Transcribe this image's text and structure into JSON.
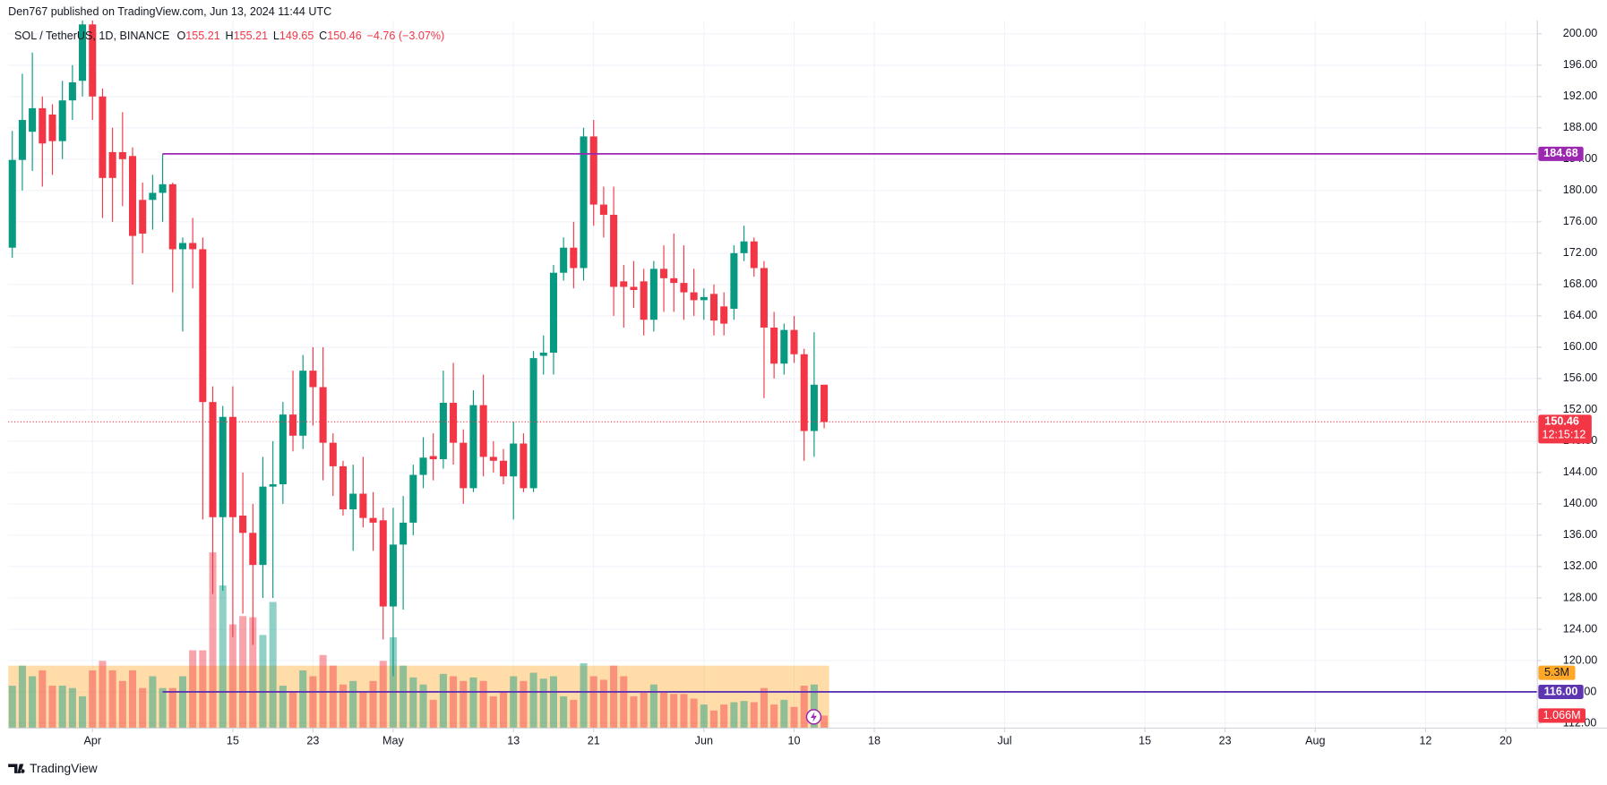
{
  "chart_data": {
    "type": "candlestick",
    "attribution": "Den767 published on TradingView.com, Jun 13, 2024 11:44 UTC",
    "symbol": "SOL / TetherUS, 1D, BINANCE",
    "ohlc_letters": [
      "O",
      "H",
      "L",
      "C"
    ],
    "change": "−4.76 (−3.07%)",
    "countdown": "12:15:12",
    "footer": "TradingView",
    "up_color": "#089981",
    "down_color": "#f23645",
    "grid": true,
    "open": [
      172.7,
      183.9,
      187.5,
      190.5,
      189.7,
      186.3,
      191.5,
      194,
      201.2,
      192,
      184.9,
      184.9,
      184.4,
      178.8,
      178.8,
      179.7,
      180.8,
      172.5,
      173.3,
      172.5,
      153,
      138.3,
      151.1,
      138.5,
      136.3,
      132.2,
      142.2,
      142.5,
      151.4,
      148.7,
      157,
      154.9,
      147.8,
      144.8,
      139.3,
      141.3,
      138.2,
      137.9,
      126.9,
      134.8,
      137.6,
      143.7,
      146.1,
      145.7,
      152.9,
      147.8,
      142,
      152.6,
      146,
      145.5,
      143.5,
      147.7,
      142,
      158.9,
      159.3,
      169.5,
      172.7,
      170.1,
      186.9,
      178.2,
      176.9,
      168.4,
      167.7,
      168.4,
      163.5,
      170,
      168.8,
      168.2,
      167,
      166,
      166.8,
      165.2,
      164.9,
      172,
      173.5,
      170.1,
      162.5,
      157.9,
      162.2,
      159.1,
      149.3,
      155.21
    ],
    "high": [
      187.6,
      194.9,
      197.6,
      192,
      191,
      194,
      196,
      203,
      204,
      193,
      188,
      190,
      185.5,
      181,
      182,
      184.7,
      181,
      174,
      176.5,
      174,
      155,
      152.5,
      155,
      144,
      140,
      146,
      148,
      153,
      157,
      159,
      160,
      160,
      149,
      145.5,
      145,
      146,
      141.5,
      139.5,
      139.5,
      141,
      145,
      148.5,
      149,
      157,
      158,
      149.5,
      154.5,
      156.5,
      148,
      147,
      150.5,
      149,
      159.5,
      161.5,
      170.5,
      174,
      176,
      188,
      189,
      180.5,
      180.5,
      170.5,
      171,
      170,
      171,
      173,
      174.5,
      173,
      170,
      167.5,
      168,
      167,
      173,
      175.5,
      174,
      171,
      164.5,
      163,
      164,
      159.8,
      161.9,
      155.21
    ],
    "low": [
      171.4,
      180,
      182.5,
      180.5,
      182,
      184,
      189,
      192,
      189,
      176.5,
      176,
      178,
      168,
      172,
      175,
      176,
      167,
      162,
      167.5,
      138,
      128.5,
      128.9,
      123,
      126,
      122,
      128,
      128,
      140,
      146.7,
      147,
      150,
      143,
      141,
      138.5,
      134,
      137,
      134,
      122.7,
      118,
      126.5,
      136,
      142,
      143,
      144.5,
      145,
      140,
      141.5,
      143.5,
      144,
      142.5,
      138,
      141.5,
      141.5,
      156.5,
      156.5,
      168.5,
      167.5,
      168.5,
      175.5,
      174,
      164,
      162.5,
      165,
      161.5,
      162,
      164.5,
      164.5,
      163.5,
      164,
      163.5,
      161.5,
      161.5,
      163.5,
      171,
      169,
      153.5,
      156,
      156.5,
      158,
      145.5,
      146,
      149.65
    ],
    "close": [
      183.9,
      189,
      190.5,
      186,
      186.3,
      191.5,
      193.8,
      201.2,
      192,
      181.6,
      181.6,
      184,
      174.2,
      174.5,
      179.7,
      180.8,
      172.5,
      173.3,
      172.5,
      153,
      138.3,
      151.1,
      138.3,
      136.3,
      132.2,
      142.2,
      142.5,
      151.4,
      148.7,
      157,
      154.9,
      147.8,
      144.8,
      139.3,
      141.3,
      138.2,
      137.6,
      126.9,
      134.8,
      137.6,
      143.7,
      145.9,
      145.7,
      152.9,
      147.8,
      142,
      152.6,
      146,
      145.5,
      143.5,
      147.7,
      142,
      158.6,
      159.3,
      169.5,
      172.7,
      170.1,
      186.9,
      178.2,
      176.9,
      167.7,
      167.7,
      167.3,
      163.5,
      170,
      168.8,
      168.2,
      167,
      166,
      166.4,
      163.4,
      163,
      172,
      173.5,
      170.1,
      162.5,
      157.9,
      162.2,
      159.1,
      149.3,
      155.21,
      150.46
    ],
    "volume": [
      3.6,
      5.3,
      4.4,
      4.9,
      3.6,
      3.6,
      3.4,
      2.7,
      4.9,
      5.7,
      4.9,
      4.0,
      4.9,
      3.4,
      4.4,
      3.4,
      3.4,
      4.4,
      6.6,
      6.6,
      14.9,
      12.1,
      8.8,
      9.5,
      9.4,
      7.9,
      10.7,
      3.6,
      3.1,
      4.9,
      4.4,
      6.2,
      5.3,
      3.7,
      4.0,
      3.1,
      4.0,
      5.7,
      7.7,
      5.3,
      4.3,
      3.7,
      2.4,
      4.6,
      4.4,
      4.0,
      4.3,
      4.0,
      2.7,
      3.1,
      4.4,
      4.0,
      4.7,
      4.2,
      4.4,
      2.7,
      2.4,
      5.5,
      4.4,
      4.1,
      5.3,
      4.4,
      2.7,
      3.0,
      3.7,
      3.0,
      2.9,
      2.9,
      2.5,
      2.0,
      1.5,
      2.0,
      2.2,
      2.3,
      2.2,
      3.4,
      2.0,
      2.4,
      1.8,
      3.6,
      3.7,
      1.066
    ],
    "last_volume_label": "1.066M",
    "volume_ma": {
      "value": 5.3,
      "label": "5.3M",
      "color": "#ffa726"
    },
    "volume_ylim": [
      0,
      60
    ],
    "price_lines": [
      {
        "value": 184.68,
        "color": "#9c27b0"
      },
      {
        "value": 116,
        "label": "116.00",
        "color": "#5e35b1"
      }
    ],
    "ylim": [
      111.37,
      201.7
    ],
    "yticks": [
      {
        "value": 200,
        "label": "200.00"
      },
      {
        "value": 196,
        "label": "196.00"
      },
      {
        "value": 192,
        "label": "192.00"
      },
      {
        "value": 188,
        "label": "188.00"
      },
      {
        "value": 184,
        "label": "184.00"
      },
      {
        "value": 180,
        "label": "180.00"
      },
      {
        "value": 176,
        "label": "176.00"
      },
      {
        "value": 172,
        "label": "172.00"
      },
      {
        "value": 168,
        "label": "168.00"
      },
      {
        "value": 164,
        "label": "164.00"
      },
      {
        "value": 160,
        "label": "160.00"
      },
      {
        "value": 156,
        "label": "156.00"
      },
      {
        "value": 152,
        "label": "152.00"
      },
      {
        "value": 148,
        "label": "148.00"
      },
      {
        "value": 144,
        "label": "144.00"
      },
      {
        "value": 140,
        "label": "140.00"
      },
      {
        "value": 136,
        "label": "136.00"
      },
      {
        "value": 132,
        "label": "132.00"
      },
      {
        "value": 128,
        "label": "128.00"
      },
      {
        "value": 124,
        "label": "124.00"
      },
      {
        "value": 120,
        "label": "120.00"
      },
      {
        "value": 116,
        "label": "116.00"
      },
      {
        "value": 112,
        "label": "112.00"
      }
    ],
    "xlim": [
      -0.41,
      152.15
    ],
    "xticks": [
      {
        "value": 8,
        "label": "Apr"
      },
      {
        "value": 22,
        "label": "15"
      },
      {
        "value": 30,
        "label": "23"
      },
      {
        "value": 38,
        "label": "May"
      },
      {
        "value": 50,
        "label": "13"
      },
      {
        "value": 58,
        "label": "21"
      },
      {
        "value": 69,
        "label": "Jun"
      },
      {
        "value": 78,
        "label": "10"
      },
      {
        "value": 86,
        "label": "18"
      },
      {
        "value": 99,
        "label": "Jul"
      },
      {
        "value": 113,
        "label": "15"
      },
      {
        "value": 121,
        "label": "23"
      },
      {
        "value": 130,
        "label": "Aug"
      },
      {
        "value": 141,
        "label": "12"
      },
      {
        "value": 149,
        "label": "20"
      }
    ]
  }
}
